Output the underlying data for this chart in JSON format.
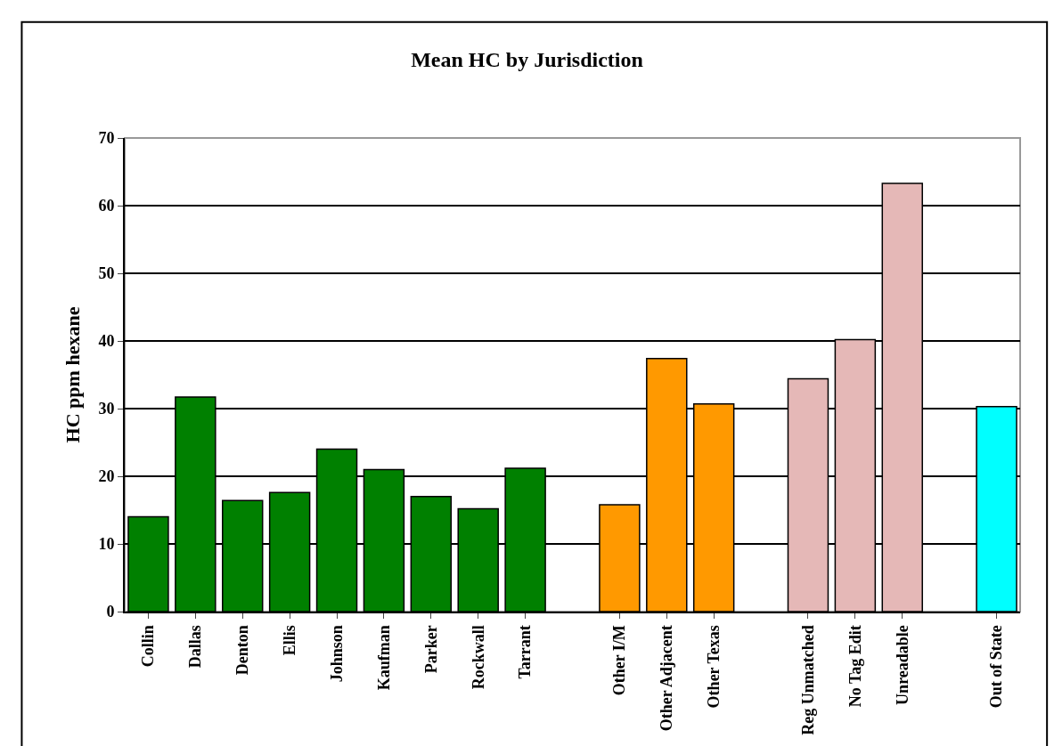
{
  "chart_data": {
    "type": "bar",
    "title": "Mean HC by Jurisdiction",
    "ylabel": "HC ppm hexane",
    "categories": [
      "Collin",
      "Dallas",
      "Denton",
      "Ellis",
      "Johnson",
      "Kaufman",
      "Parker",
      "Rockwall",
      "Tarrant",
      null,
      "Other I/M",
      "Other Adjacent",
      "Other Texas",
      null,
      "Reg Unmatched",
      "No Tag Edit",
      "Unreadable",
      null,
      "Out of State"
    ],
    "values": [
      14.0,
      31.7,
      16.4,
      17.6,
      24.0,
      21.0,
      17.0,
      15.2,
      21.2,
      null,
      15.8,
      37.4,
      30.7,
      null,
      34.4,
      40.2,
      63.3,
      null,
      30.3
    ],
    "colors": [
      "#008000",
      "#008000",
      "#008000",
      "#008000",
      "#008000",
      "#008000",
      "#008000",
      "#008000",
      "#008000",
      null,
      "#ff9900",
      "#ff9900",
      "#ff9900",
      null,
      "#e5b8b7",
      "#e5b8b7",
      "#e5b8b7",
      null,
      "#00ffff"
    ],
    "ylim": [
      0,
      70
    ],
    "yticks": [
      0,
      10,
      20,
      30,
      40,
      50,
      60,
      70
    ],
    "grid": "y"
  }
}
